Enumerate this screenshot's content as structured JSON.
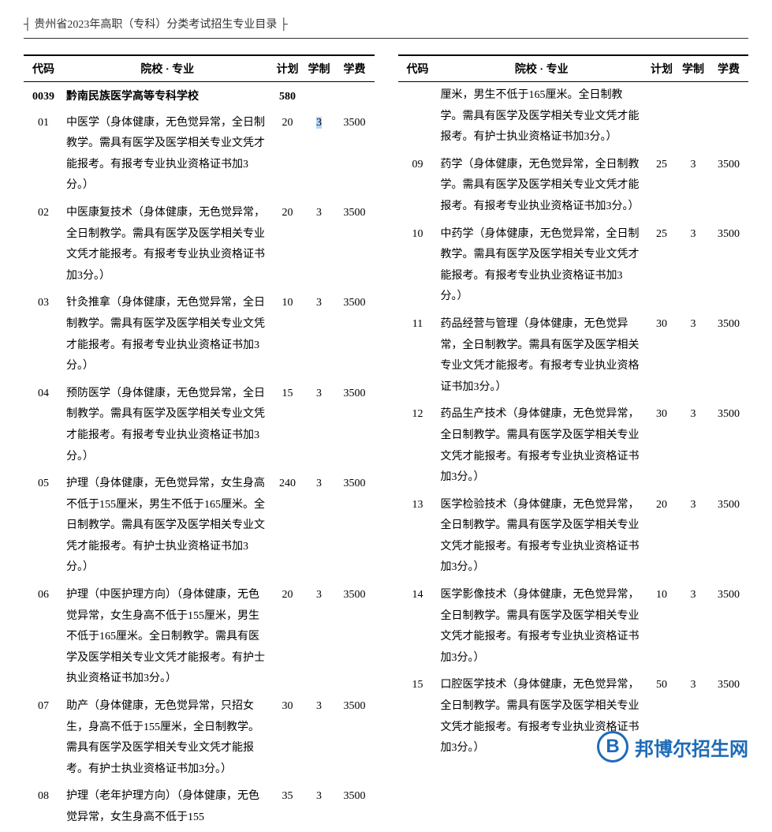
{
  "header": {
    "title": "┤ 贵州省2023年高职（专科）分类考试招生专业目录 ├"
  },
  "columns": {
    "code": "代码",
    "name": "院校 · 专业",
    "plan": "计划",
    "duration": "学制",
    "fee": "学费"
  },
  "school": {
    "code": "0039",
    "name": "黔南民族医学高等专科学校",
    "plan_total": "580"
  },
  "left_rows": [
    {
      "code": "01",
      "name": "中医学（身体健康，无色觉异常，全日制教学。需具有医学及医学相关专业文凭才能报考。有报考专业执业资格证书加3分。）",
      "plan": "20",
      "dur": "3",
      "fee": "3500",
      "highlight_dur": true
    },
    {
      "code": "02",
      "name": "中医康复技术（身体健康，无色觉异常，全日制教学。需具有医学及医学相关专业文凭才能报考。有报考专业执业资格证书加3分。）",
      "plan": "20",
      "dur": "3",
      "fee": "3500"
    },
    {
      "code": "03",
      "name": "针灸推拿（身体健康，无色觉异常，全日制教学。需具有医学及医学相关专业文凭才能报考。有报考专业执业资格证书加3分。）",
      "plan": "10",
      "dur": "3",
      "fee": "3500"
    },
    {
      "code": "04",
      "name": "预防医学（身体健康，无色觉异常，全日制教学。需具有医学及医学相关专业文凭才能报考。有报考专业执业资格证书加3分。）",
      "plan": "15",
      "dur": "3",
      "fee": "3500"
    },
    {
      "code": "05",
      "name": "护理（身体健康，无色觉异常，女生身高不低于155厘米，男生不低于165厘米。全日制教学。需具有医学及医学相关专业文凭才能报考。有护士执业资格证书加3分。）",
      "plan": "240",
      "dur": "3",
      "fee": "3500"
    },
    {
      "code": "06",
      "name": "护理（中医护理方向）（身体健康，无色觉异常，女生身高不低于155厘米，男生不低于165厘米。全日制教学。需具有医学及医学相关专业文凭才能报考。有护士执业资格证书加3分。）",
      "plan": "20",
      "dur": "3",
      "fee": "3500"
    },
    {
      "code": "07",
      "name": "助产（身体健康，无色觉异常，只招女生，身高不低于155厘米，全日制教学。需具有医学及医学相关专业文凭才能报考。有护士执业资格证书加3分。）",
      "plan": "30",
      "dur": "3",
      "fee": "3500"
    },
    {
      "code": "08",
      "name": "护理（老年护理方向）（身体健康，无色觉异常，女生身高不低于155",
      "plan": "35",
      "dur": "3",
      "fee": "3500"
    }
  ],
  "right_continuation": "厘米，男生不低于165厘米。全日制教学。需具有医学及医学相关专业文凭才能报考。有护士执业资格证书加3分。）",
  "right_rows": [
    {
      "code": "09",
      "name": "药学（身体健康，无色觉异常，全日制教学。需具有医学及医学相关专业文凭才能报考。有报考专业执业资格证书加3分。）",
      "plan": "25",
      "dur": "3",
      "fee": "3500"
    },
    {
      "code": "10",
      "name": "中药学（身体健康，无色觉异常，全日制教学。需具有医学及医学相关专业文凭才能报考。有报考专业执业资格证书加3分。）",
      "plan": "25",
      "dur": "3",
      "fee": "3500"
    },
    {
      "code": "11",
      "name": "药品经营与管理（身体健康，无色觉异常，全日制教学。需具有医学及医学相关专业文凭才能报考。有报考专业执业资格证书加3分。）",
      "plan": "30",
      "dur": "3",
      "fee": "3500"
    },
    {
      "code": "12",
      "name": "药品生产技术（身体健康，无色觉异常，全日制教学。需具有医学及医学相关专业文凭才能报考。有报考专业执业资格证书加3分。）",
      "plan": "30",
      "dur": "3",
      "fee": "3500"
    },
    {
      "code": "13",
      "name": "医学检验技术（身体健康，无色觉异常，全日制教学。需具有医学及医学相关专业文凭才能报考。有报考专业执业资格证书加3分。）",
      "plan": "20",
      "dur": "3",
      "fee": "3500"
    },
    {
      "code": "14",
      "name": "医学影像技术（身体健康，无色觉异常，全日制教学。需具有医学及医学相关专业文凭才能报考。有报考专业执业资格证书加3分。）",
      "plan": "10",
      "dur": "3",
      "fee": "3500"
    },
    {
      "code": "15",
      "name": "口腔医学技术（身体健康，无色觉异常，全日制教学。需具有医学及医学相关专业文凭才能报考。有报考专业执业资格证书加3分。）",
      "plan": "50",
      "dur": "3",
      "fee": "3500"
    }
  ],
  "watermark": {
    "logo_letter": "B",
    "text": "邦博尔招生网",
    "color": "#1e6bb8"
  },
  "styling": {
    "font_family": "SimSun",
    "body_font_size": 14,
    "text_color": "#000000",
    "background_color": "#ffffff",
    "header_border_color": "#333333",
    "table_border_top": "#000000",
    "line_height": 1.9,
    "highlight_color": "#b3d4fc"
  }
}
